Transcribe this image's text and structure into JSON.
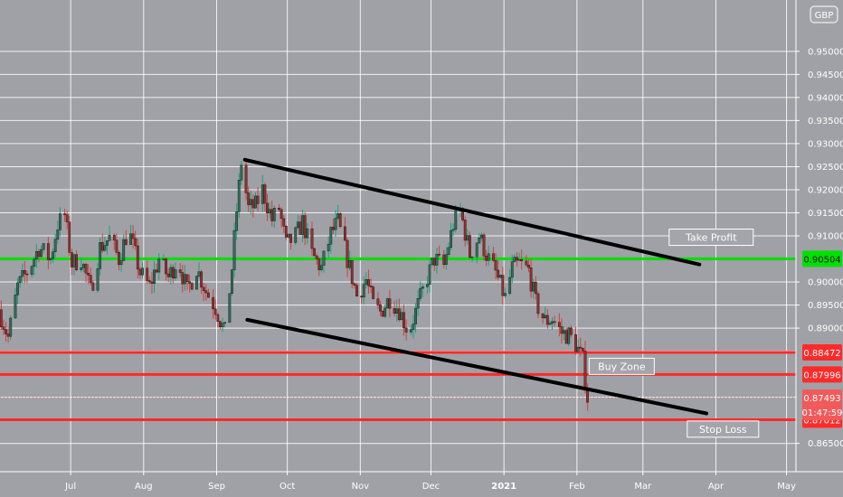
{
  "currency_badge": "GBP",
  "chart_data": {
    "type": "candlestick",
    "instrument_currency": "GBP",
    "y_axis": {
      "range": [
        0.862,
        0.958
      ],
      "ticks": [
        "0.86500",
        "0.87000",
        "0.87500",
        "0.88000",
        "0.88500",
        "0.89000",
        "0.89500",
        "0.90000",
        "0.90500",
        "0.91000",
        "0.91500",
        "0.92000",
        "0.92500",
        "0.93000",
        "0.93500",
        "0.94000",
        "0.94500",
        "0.95000"
      ],
      "hidden_ticks": [
        "0.87000",
        "0.87500",
        "0.88000",
        "0.88500",
        "0.90500"
      ]
    },
    "x_axis": {
      "range": [
        "2020-06-01",
        "2021-05-05"
      ],
      "labels": [
        {
          "text": "Jul",
          "date": "2020-07-01"
        },
        {
          "text": "Aug",
          "date": "2020-08-01"
        },
        {
          "text": "Sep",
          "date": "2020-09-01"
        },
        {
          "text": "Oct",
          "date": "2020-10-01"
        },
        {
          "text": "Nov",
          "date": "2020-11-01"
        },
        {
          "text": "Dec",
          "date": "2020-12-01"
        },
        {
          "text": "2021",
          "date": "2021-01-01",
          "bold": true
        },
        {
          "text": "Feb",
          "date": "2021-02-01"
        },
        {
          "text": "Mar",
          "date": "2021-03-01"
        },
        {
          "text": "Apr",
          "date": "2021-04-01"
        },
        {
          "text": "May",
          "date": "2021-05-01"
        }
      ]
    },
    "price_path": [
      [
        "2020-06-01",
        0.894
      ],
      [
        "2020-06-05",
        0.888
      ],
      [
        "2020-06-09",
        0.899
      ],
      [
        "2020-06-14",
        0.903
      ],
      [
        "2020-06-18",
        0.9075
      ],
      [
        "2020-06-23",
        0.905
      ],
      [
        "2020-06-26",
        0.9125
      ],
      [
        "2020-06-29",
        0.9145
      ],
      [
        "2020-07-02",
        0.904
      ],
      [
        "2020-07-06",
        0.905
      ],
      [
        "2020-07-10",
        0.898
      ],
      [
        "2020-07-14",
        0.9075
      ],
      [
        "2020-07-18",
        0.9095
      ],
      [
        "2020-07-22",
        0.905
      ],
      [
        "2020-07-26",
        0.9115
      ],
      [
        "2020-07-31",
        0.902
      ],
      [
        "2020-08-04",
        0.899
      ],
      [
        "2020-08-08",
        0.905
      ],
      [
        "2020-08-12",
        0.901
      ],
      [
        "2020-08-16",
        0.905
      ],
      [
        "2020-08-20",
        0.898
      ],
      [
        "2020-08-24",
        0.903
      ],
      [
        "2020-08-28",
        0.898
      ],
      [
        "2020-09-01",
        0.8945
      ],
      [
        "2020-09-05",
        0.889
      ],
      [
        "2020-09-08",
        0.903
      ],
      [
        "2020-09-10",
        0.9155
      ],
      [
        "2020-09-12",
        0.926
      ],
      [
        "2020-09-15",
        0.916
      ],
      [
        "2020-09-18",
        0.9165
      ],
      [
        "2020-09-21",
        0.92
      ],
      [
        "2020-09-25",
        0.9135
      ],
      [
        "2020-09-28",
        0.916
      ],
      [
        "2020-10-01",
        0.908
      ],
      [
        "2020-10-05",
        0.91
      ],
      [
        "2020-10-08",
        0.913
      ],
      [
        "2020-10-12",
        0.906
      ],
      [
        "2020-10-16",
        0.903
      ],
      [
        "2020-10-20",
        0.9105
      ],
      [
        "2020-10-23",
        0.913
      ],
      [
        "2020-10-27",
        0.905
      ],
      [
        "2020-10-31",
        0.897
      ],
      [
        "2020-11-04",
        0.9005
      ],
      [
        "2020-11-07",
        0.895
      ],
      [
        "2020-11-10",
        0.8935
      ],
      [
        "2020-11-14",
        0.8965
      ],
      [
        "2020-11-18",
        0.894
      ],
      [
        "2020-11-22",
        0.889
      ],
      [
        "2020-11-26",
        0.895
      ],
      [
        "2020-11-30",
        0.901
      ],
      [
        "2020-12-03",
        0.905
      ],
      [
        "2020-12-07",
        0.9035
      ],
      [
        "2020-12-11",
        0.9125
      ],
      [
        "2020-12-14",
        0.9155
      ],
      [
        "2020-12-18",
        0.906
      ],
      [
        "2020-12-22",
        0.91
      ],
      [
        "2020-12-25",
        0.906
      ],
      [
        "2020-12-29",
        0.902
      ],
      [
        "2021-01-02",
        0.8965
      ],
      [
        "2021-01-05",
        0.903
      ],
      [
        "2021-01-08",
        0.904
      ],
      [
        "2021-01-12",
        0.9025
      ],
      [
        "2021-01-15",
        0.8955
      ],
      [
        "2021-01-19",
        0.8915
      ],
      [
        "2021-01-22",
        0.892
      ],
      [
        "2021-01-26",
        0.889
      ],
      [
        "2021-01-29",
        0.8885
      ],
      [
        "2021-02-01",
        0.8865
      ],
      [
        "2021-02-04",
        0.883
      ],
      [
        "2021-02-06",
        0.8749
      ]
    ],
    "trendlines": [
      {
        "from": [
          "2020-09-13",
          0.9265
        ],
        "to": [
          "2021-03-25",
          0.9038
        ]
      },
      {
        "from": [
          "2020-09-14",
          0.8918
        ],
        "to": [
          "2021-03-28",
          0.8715
        ]
      }
    ],
    "levels": [
      {
        "price": 0.90504,
        "label": "0.90504",
        "color": "#00e000"
      },
      {
        "price": 0.88472,
        "label": "0.88472",
        "color": "#ff2a2a"
      },
      {
        "price": 0.87996,
        "label": "0.87996",
        "color": "#ff2a2a"
      },
      {
        "price": 0.87012,
        "label": "0.87012",
        "color": "#ff2a2a"
      }
    ],
    "last_price": {
      "price": 0.87493,
      "label": "0.87493",
      "countdown": "01:47:59",
      "color": "#f05a5a"
    },
    "annotations": [
      {
        "text": "Take Profit",
        "date": "2021-03-30",
        "price": 0.9097
      },
      {
        "text": "Buy Zone",
        "date": "2021-02-20",
        "price": 0.8817
      },
      {
        "text": "Stop Loss",
        "date": "2021-04-04",
        "price": 0.8681
      }
    ],
    "colors": {
      "background": "#9fa1a6",
      "grid": "#ffffff",
      "candle_up": "#2f6f5a",
      "candle_down": "#9b2c2c",
      "wick_up": "#1aa17a",
      "wick_down": "#d04040",
      "trendline": "#000000"
    }
  }
}
